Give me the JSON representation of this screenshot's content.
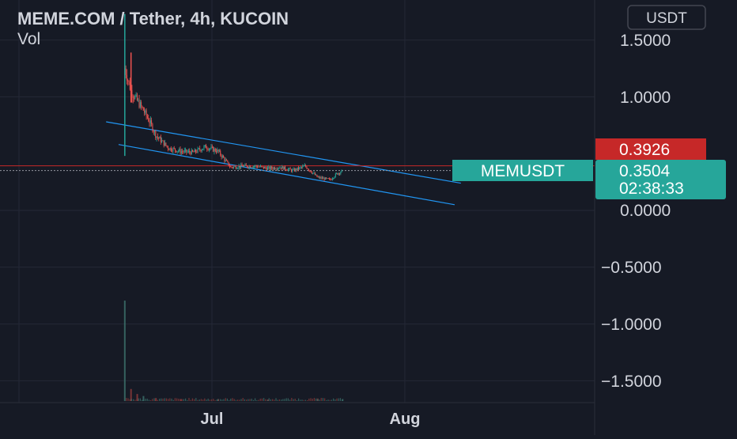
{
  "header": {
    "title": "MEME.COM / Tether, 4h, KUCOIN",
    "volume_label": "Vol",
    "currency": "USDT"
  },
  "price_axis": {
    "ticks": [
      "1.5000",
      "1.0000",
      "0.0000",
      "−0.5000",
      "−1.0000",
      "−1.5000"
    ],
    "tick_values": [
      1.5,
      1.0,
      0.0,
      -0.5,
      -1.0,
      -1.5
    ]
  },
  "time_axis": {
    "ticks": [
      "Jul",
      "Aug"
    ]
  },
  "markers": {
    "horizontal_level_label": "0.3926",
    "horizontal_level_value": 0.3926,
    "symbol_label": "MEMUSDT",
    "last_price_label": "0.3504",
    "last_price_value": 0.3504,
    "countdown": "02:38:33"
  },
  "colors": {
    "background": "#161a25",
    "grid": "#242836",
    "text": "#d1d4dc",
    "up": "#26a69a",
    "down": "#ef5350",
    "channel": "#2196f3",
    "level": "#c62828",
    "price_tag": "#26a69a"
  },
  "chart_data": {
    "type": "candlestick",
    "symbol": "MEMUSDT",
    "interval": "4h",
    "exchange": "KUCOIN",
    "ylim": [
      -1.65,
      1.75
    ],
    "x_range": [
      "2023-06-15",
      "2023-08-13"
    ],
    "x_ticks": [
      "Jul",
      "Aug"
    ],
    "price_path": [
      {
        "date": "2023-06-17",
        "price": 1.25
      },
      {
        "date": "2023-06-18",
        "price": 1.05
      },
      {
        "date": "2023-06-20",
        "price": 0.88
      },
      {
        "date": "2023-06-21",
        "price": 0.78
      },
      {
        "date": "2023-06-22",
        "price": 0.66
      },
      {
        "date": "2023-06-24",
        "price": 0.55
      },
      {
        "date": "2023-06-26",
        "price": 0.52
      },
      {
        "date": "2023-06-28",
        "price": 0.51
      },
      {
        "date": "2023-06-30",
        "price": 0.56
      },
      {
        "date": "2023-07-02",
        "price": 0.52
      },
      {
        "date": "2023-07-04",
        "price": 0.38
      },
      {
        "date": "2023-07-06",
        "price": 0.39
      },
      {
        "date": "2023-07-08",
        "price": 0.39
      },
      {
        "date": "2023-07-10",
        "price": 0.37
      },
      {
        "date": "2023-07-12",
        "price": 0.38
      },
      {
        "date": "2023-07-14",
        "price": 0.35
      },
      {
        "date": "2023-07-16",
        "price": 0.39
      },
      {
        "date": "2023-07-18",
        "price": 0.29
      },
      {
        "date": "2023-07-20",
        "price": 0.27
      },
      {
        "date": "2023-07-21",
        "price": 0.32
      },
      {
        "date": "2023-07-22",
        "price": 0.3504
      }
    ],
    "candle_spikes": [
      {
        "date": "2023-06-17",
        "high": 1.73,
        "low": 0.48
      },
      {
        "date": "2023-06-18",
        "high": 1.39,
        "low": 0.95
      }
    ],
    "channel_upper": [
      {
        "date": "2023-06-14",
        "price": 0.78
      },
      {
        "date": "2023-08-10",
        "price": 0.24
      }
    ],
    "channel_lower": [
      {
        "date": "2023-06-16",
        "price": 0.58
      },
      {
        "date": "2023-08-09",
        "price": 0.05
      }
    ],
    "volume": [
      {
        "date": "2023-06-17",
        "value": 1.0
      },
      {
        "date": "2023-06-18",
        "value": 0.12
      },
      {
        "date": "2023-06-19",
        "value": 0.07
      },
      {
        "date": "2023-06-20",
        "value": 0.05
      },
      {
        "date": "2023-06-22",
        "value": 0.03
      },
      {
        "date": "2023-06-26",
        "value": 0.02
      },
      {
        "date": "2023-07-02",
        "value": 0.02
      },
      {
        "date": "2023-07-10",
        "value": 0.015
      },
      {
        "date": "2023-07-18",
        "value": 0.025
      },
      {
        "date": "2023-07-22",
        "value": 0.02
      }
    ],
    "horizontal_level": 0.3926,
    "last_price": 0.3504
  }
}
